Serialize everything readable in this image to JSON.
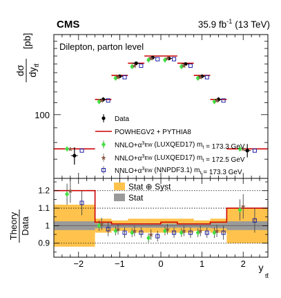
{
  "header": {
    "experiment": "CMS",
    "lumi": "35.9 fb",
    "lumi_sup": "-1",
    "energy": "(13 TeV)"
  },
  "colors": {
    "powheg": "#cc0000",
    "luxqed_1733": "#44dd44",
    "luxqed_1725": "#8b5a44",
    "nnpdf": "#1a1aa6",
    "stat_syst_band": "#ffc34d",
    "stat_band": "#9a9a9a",
    "data": "#000000"
  },
  "chart_data": [
    {
      "type": "scatter",
      "panel": "main",
      "title": "Dilepton, parton level",
      "ylabel": {
        "main": "dσ",
        "den": "dy",
        "den_sub": "tt̄",
        "unit": "[pb]"
      },
      "yscale": "log",
      "ylim": [
        60,
        190
      ],
      "xlim": [
        -2.6,
        2.6
      ],
      "yticklabels": [
        "100"
      ],
      "bins": [
        -2.6,
        -1.6,
        -1.2,
        -0.8,
        -0.4,
        0.0,
        0.4,
        0.8,
        1.2,
        1.6,
        2.6
      ],
      "series": [
        {
          "name": "Data",
          "marker": "dot",
          "x": [
            -2.1,
            -1.4,
            -1.0,
            -0.6,
            -0.2,
            0.2,
            0.6,
            1.0,
            1.4,
            2.1
          ],
          "values": [
            72,
            113,
            136,
            151,
            158,
            157,
            150,
            136,
            113,
            75
          ],
          "err": [
            5,
            2,
            2,
            2,
            2,
            2,
            2,
            2,
            2,
            4
          ]
        },
        {
          "name": "POWHEGV2 + PYTHIA8",
          "style": "step",
          "values": [
            76,
            113,
            137,
            151,
            160,
            160,
            151,
            137,
            113,
            76
          ]
        },
        {
          "name_html": "NNLO+α<sup>3</sup><sub>EW</sub> (LUXQED17) m<sub>t</sub> = 173.3 GeV",
          "marker": "diamond",
          "x": [
            -2.28,
            -1.5,
            -1.1,
            -0.7,
            -0.3,
            0.1,
            0.5,
            0.9,
            1.3,
            1.92
          ],
          "values": [
            76,
            111,
            134,
            147,
            155,
            155,
            147,
            134,
            111,
            76
          ]
        },
        {
          "name_html": "NNLO+α<sup>3</sup><sub>EW</sub> (LUXQED17) m<sub>t</sub> = 172.5 GeV",
          "marker": "star",
          "x": [
            -2.2,
            -1.44,
            -1.04,
            -0.64,
            -0.24,
            0.16,
            0.56,
            0.96,
            1.36,
            2.0
          ],
          "values": [
            76,
            112,
            135,
            148,
            157,
            157,
            148,
            135,
            112,
            76
          ]
        },
        {
          "name_html": "NNLO+α<sup>3</sup><sub>EW</sub> (NNPDF3.1) m<sub>t</sub> = 173.3 GeV",
          "marker": "open-square",
          "x": [
            -1.92,
            -1.28,
            -0.88,
            -0.48,
            -0.08,
            0.32,
            0.72,
            1.12,
            1.52,
            2.28
          ],
          "values": [
            75,
            112,
            135,
            148,
            156,
            156,
            148,
            135,
            112,
            75
          ]
        }
      ]
    },
    {
      "type": "scatter",
      "panel": "ratio",
      "ylabel": {
        "num": "Theory",
        "den": "Data"
      },
      "xlabel": "y",
      "xlabel_sub": "tt̄",
      "ylim": [
        0.82,
        1.27
      ],
      "xlim": [
        -2.6,
        2.6
      ],
      "xticks": [
        -2,
        -1,
        0,
        1,
        2
      ],
      "xticklabels": [
        "−2",
        "−1",
        "0",
        "1",
        "2"
      ],
      "yticks": [
        0.9,
        1.0,
        1.1,
        1.2
      ],
      "yticklabels": [
        "0.9",
        "1",
        "1.1",
        "1.2"
      ],
      "legend": [
        "Stat ⊕ Syst",
        "Stat"
      ],
      "bins": [
        -2.6,
        -1.6,
        -1.2,
        -0.8,
        -0.4,
        0.0,
        0.4,
        0.8,
        1.2,
        1.6,
        2.6
      ],
      "stat_syst_half_width": [
        0.12,
        0.04,
        0.03,
        0.04,
        0.04,
        0.04,
        0.04,
        0.03,
        0.04,
        0.1
      ],
      "stat_half_width": [
        0.025,
        0.015,
        0.012,
        0.012,
        0.012,
        0.012,
        0.012,
        0.012,
        0.015,
        0.025
      ],
      "series": [
        {
          "name": "POWHEGV2 + PYTHIA8",
          "style": "step",
          "values": [
            1.2,
            1.02,
            1.01,
            1.01,
            1.01,
            1.02,
            1.01,
            1.01,
            1.02,
            1.1
          ]
        },
        {
          "name": "LUXQED17 173.3",
          "marker": "diamond",
          "x": [
            -2.28,
            -1.5,
            -1.1,
            -0.7,
            -0.3,
            0.1,
            0.5,
            0.9,
            1.3,
            1.92
          ],
          "values": [
            1.18,
            1.0,
            0.97,
            0.96,
            0.93,
            0.97,
            0.96,
            0.96,
            0.96,
            1.09
          ],
          "err": [
            0.06,
            0.03,
            0.025,
            0.025,
            0.025,
            0.025,
            0.025,
            0.025,
            0.03,
            0.06
          ]
        },
        {
          "name": "LUXQED17 172.5",
          "marker": "star",
          "x": [
            -2.2,
            -1.44,
            -1.04,
            -0.64,
            -0.24,
            0.16,
            0.56,
            0.96,
            1.36,
            2.0
          ],
          "values": [
            1.2,
            1.01,
            0.98,
            0.97,
            0.95,
            0.98,
            0.97,
            0.97,
            0.97,
            1.11
          ],
          "err": [
            0.07,
            0.035,
            0.03,
            0.03,
            0.03,
            0.03,
            0.03,
            0.03,
            0.035,
            0.07
          ]
        },
        {
          "name": "NNPDF3.1 173.3",
          "marker": "open-square",
          "x": [
            -1.92,
            -1.28,
            -0.88,
            -0.48,
            -0.08,
            0.32,
            0.72,
            1.12,
            1.52,
            2.28
          ],
          "values": [
            1.13,
            0.98,
            0.96,
            0.96,
            0.94,
            0.96,
            0.96,
            0.96,
            0.96,
            1.03
          ],
          "err": [
            0.07,
            0.04,
            0.03,
            0.03,
            0.03,
            0.03,
            0.03,
            0.03,
            0.04,
            0.07
          ]
        }
      ]
    }
  ]
}
